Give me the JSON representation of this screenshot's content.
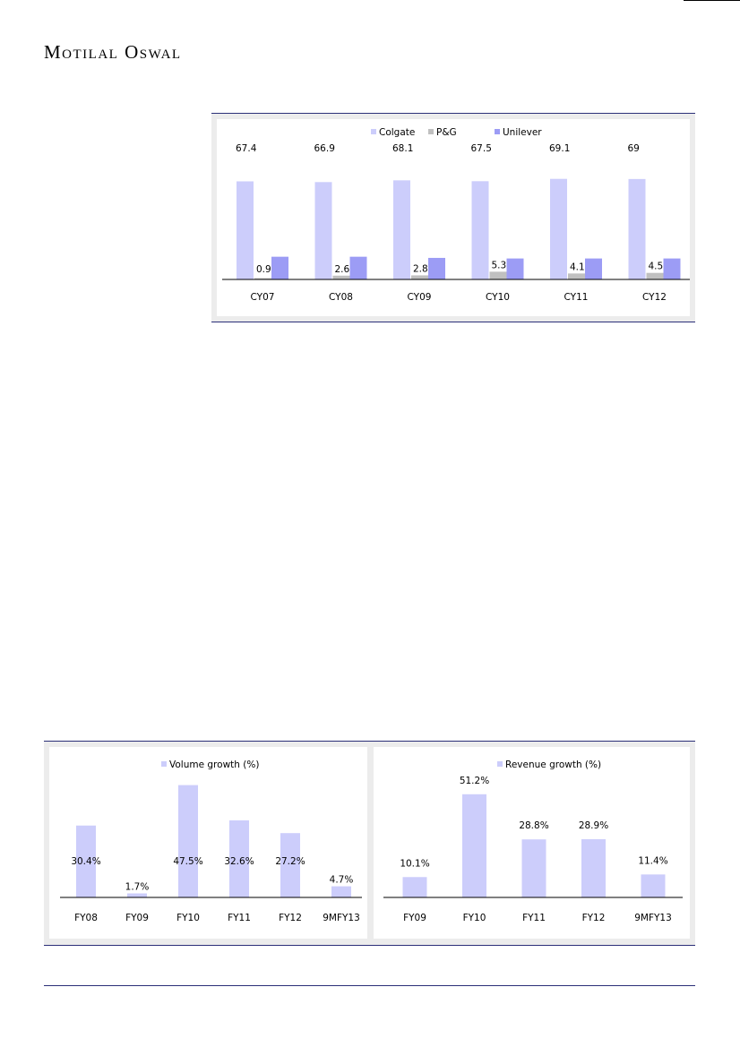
{
  "header": {
    "brand": "Motilal Oswal"
  },
  "colors": {
    "colgate": "#cccdfb",
    "pg": "#c0c0c0",
    "unilever": "#9c9cf5",
    "volume": "#cccdfb",
    "revenue": "#cccdfb",
    "rule": "#2b2f78"
  },
  "chart_data": [
    {
      "type": "bar",
      "categories": [
        "CY07",
        "CY08",
        "CY09",
        "CY10",
        "CY11",
        "CY12"
      ],
      "series": [
        {
          "name": "Colgate",
          "values": [
            67.4,
            66.9,
            68.1,
            67.5,
            69.1,
            69
          ],
          "labels": [
            "67.4",
            "66.9",
            "68.1",
            "67.5",
            "69.1",
            "69"
          ]
        },
        {
          "name": "P&G",
          "values": [
            0.9,
            2.6,
            2.8,
            5.3,
            4.1,
            4.5
          ],
          "labels": [
            "0.9",
            "2.6",
            "2.8",
            "5.3",
            "4.1",
            "4.5"
          ]
        },
        {
          "name": "Unilever",
          "values": [
            15.6,
            15.6,
            14.8,
            14.4,
            14.4,
            14.4
          ],
          "labels": []
        }
      ],
      "ylim": [
        0,
        80
      ],
      "legend": "top-center"
    },
    {
      "type": "bar",
      "categories": [
        "FY08",
        "FY09",
        "FY10",
        "FY11",
        "FY12",
        "9MFY13"
      ],
      "series": [
        {
          "name": "Volume growth (%)",
          "values": [
            30.4,
            1.7,
            47.5,
            32.6,
            27.2,
            4.7
          ],
          "labels": [
            "30.4%",
            "1.7%",
            "47.5%",
            "32.6%",
            "27.2%",
            "4.7%"
          ]
        }
      ],
      "ylim": [
        0,
        50
      ],
      "legend": "top-center"
    },
    {
      "type": "bar",
      "categories": [
        "FY09",
        "FY10",
        "FY11",
        "FY12",
        "9MFY13"
      ],
      "series": [
        {
          "name": "Revenue growth (%)",
          "values": [
            10.1,
            51.2,
            28.8,
            28.9,
            11.4
          ],
          "labels": [
            "10.1%",
            "51.2%",
            "28.8%",
            "28.9%",
            "11.4%"
          ]
        }
      ],
      "ylim": [
        0,
        60
      ],
      "legend": "top-center"
    }
  ]
}
